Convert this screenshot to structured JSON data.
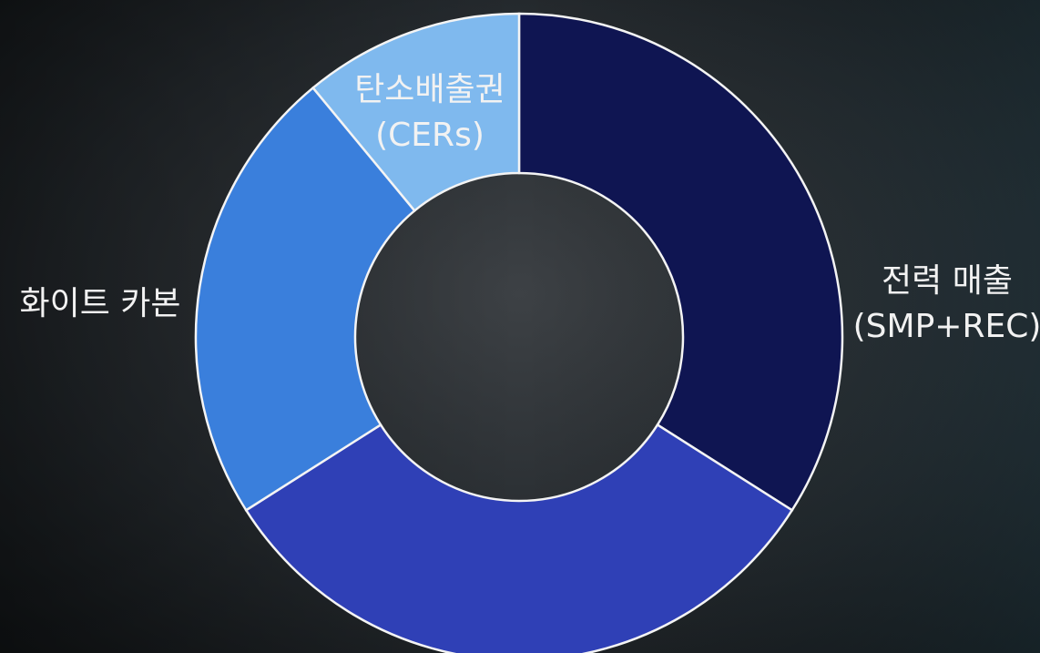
{
  "chart_data": {
    "type": "donut",
    "categories": [
      [
        "전력 매출",
        "(SMP+REC)"
      ],
      null,
      [
        "화이트 카본"
      ],
      [
        "탄소배출권",
        "(CERs)"
      ]
    ],
    "values": [
      34,
      32,
      23,
      11
    ],
    "colors": [
      "#0f1552",
      "#2f40b6",
      "#3a7fdc",
      "#7fb9ee"
    ]
  }
}
